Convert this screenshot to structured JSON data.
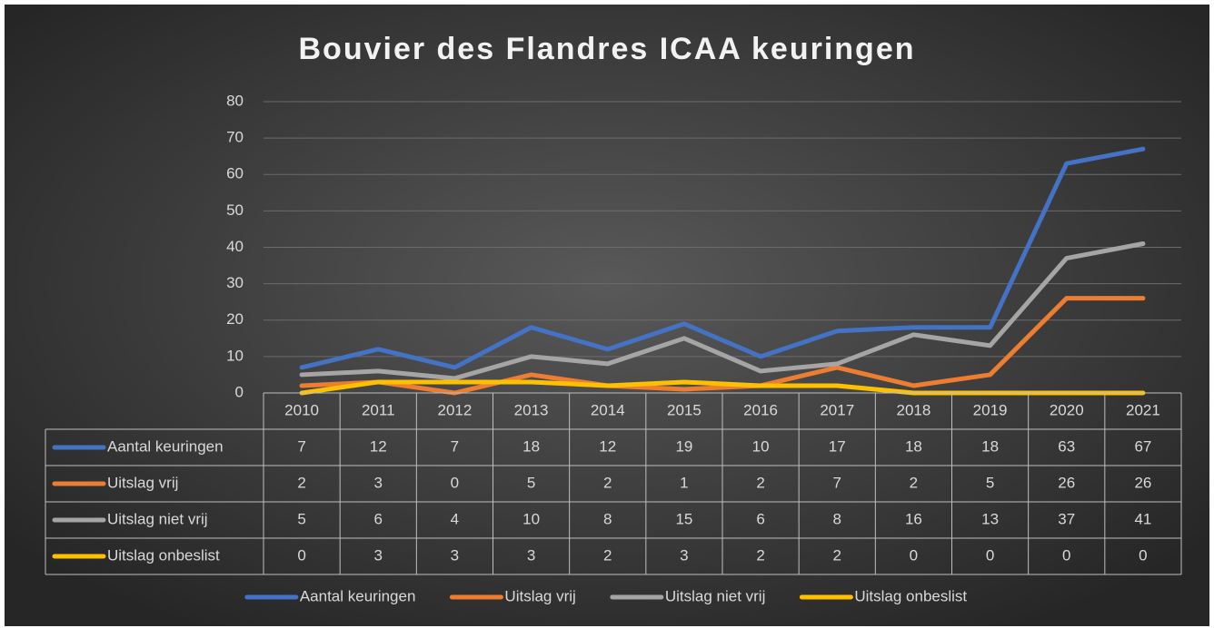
{
  "chart_data": {
    "type": "line",
    "title": "Bouvier des Flandres ICAA keuringen",
    "categories": [
      "2010",
      "2011",
      "2012",
      "2013",
      "2014",
      "2015",
      "2016",
      "2017",
      "2018",
      "2019",
      "2020",
      "2021"
    ],
    "series": [
      {
        "name": "Aantal keuringen",
        "color": "#4472c4",
        "values": [
          7,
          12,
          7,
          18,
          12,
          19,
          10,
          17,
          18,
          18,
          63,
          67
        ]
      },
      {
        "name": "Uitslag vrij",
        "color": "#ed7d31",
        "values": [
          2,
          3,
          0,
          5,
          2,
          1,
          2,
          7,
          2,
          5,
          26,
          26
        ]
      },
      {
        "name": "Uitslag niet vrij",
        "color": "#a5a5a5",
        "values": [
          5,
          6,
          4,
          10,
          8,
          15,
          6,
          8,
          16,
          13,
          37,
          41
        ]
      },
      {
        "name": "Uitslag onbeslist",
        "color": "#ffc000",
        "values": [
          0,
          3,
          3,
          3,
          2,
          3,
          2,
          2,
          0,
          0,
          0,
          0
        ]
      }
    ],
    "ylim": [
      0,
      80
    ],
    "yticks": [
      0,
      10,
      20,
      30,
      40,
      50,
      60,
      70,
      80
    ],
    "grid": true,
    "legend": "bottom",
    "data_table": true
  }
}
